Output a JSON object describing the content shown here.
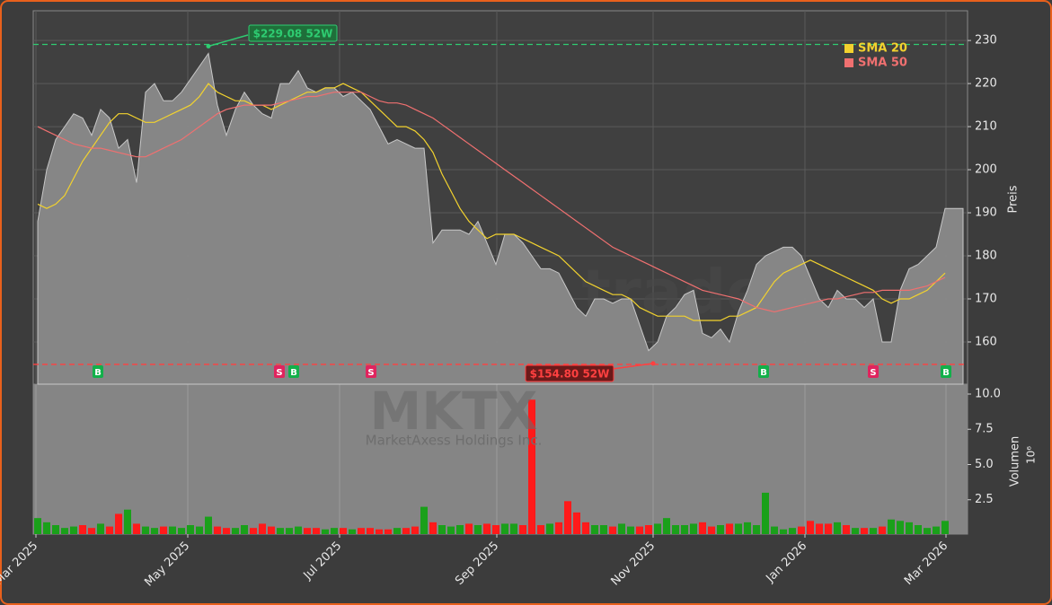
{
  "chart_data": {
    "type": "area",
    "ticker": "MKTX",
    "company": "MarketAxess Holdings Inc.",
    "watermark": "forexsignale.trade",
    "ylabel": "Preis",
    "color": "#8a8a8a",
    "up_color": "#1aa01a",
    "down_color": "#ff1a1a",
    "grid": true,
    "xlim": [
      -0.5,
      103.5
    ],
    "xticks": [
      {
        "value": -0.2,
        "label": "Mar 2025"
      },
      {
        "value": 16.7,
        "label": "May 2025"
      },
      {
        "value": 33.6,
        "label": "Jul 2025"
      },
      {
        "value": 51.1,
        "label": "Sep 2025"
      },
      {
        "value": 68.5,
        "label": "Nov 2025"
      },
      {
        "value": 85.4,
        "label": "Jan 2026"
      },
      {
        "value": 101.1,
        "label": "Mar 2026"
      }
    ],
    "ylim": [
      150.2,
      236.9
    ],
    "yticks": [
      160,
      170,
      180,
      190,
      200,
      210,
      220,
      230
    ],
    "values": [
      188,
      200,
      207,
      210,
      213,
      212,
      208,
      214,
      212,
      205,
      207,
      197,
      218,
      220,
      216,
      216,
      218,
      221,
      224,
      227,
      215,
      208,
      214,
      218,
      215,
      213,
      212,
      220,
      220,
      223,
      219,
      218,
      219,
      219,
      217,
      218,
      216,
      214,
      210,
      206,
      207,
      206,
      205,
      205,
      183,
      186,
      186,
      186,
      185,
      188,
      183,
      178,
      185,
      185,
      183,
      180,
      177,
      177,
      176,
      172,
      168,
      166,
      170,
      170,
      169,
      170,
      170,
      164,
      158,
      160,
      166,
      168,
      171,
      172,
      162,
      161,
      163,
      160,
      167,
      172,
      178,
      180,
      181,
      182,
      182,
      180,
      175,
      170,
      168,
      172,
      170,
      170,
      168,
      170,
      160,
      160,
      172,
      177,
      178,
      180,
      182,
      191,
      191,
      191
    ],
    "series": [
      {
        "name": "SMA 20",
        "color": "#f2d22e",
        "values": [
          192,
          191,
          192,
          194,
          198,
          202,
          205,
          208,
          211,
          213,
          213,
          212,
          211,
          211,
          212,
          213,
          214,
          215,
          217,
          220,
          218,
          217,
          216,
          216,
          215,
          215,
          214,
          215,
          216,
          217,
          218,
          218,
          219,
          219,
          220,
          219,
          218,
          216,
          214,
          212,
          210,
          210,
          209,
          207,
          204,
          199,
          195,
          191,
          188,
          186,
          184,
          185,
          185,
          185,
          184,
          183,
          182,
          181,
          180,
          178,
          176,
          174,
          173,
          172,
          171,
          171,
          170,
          168,
          167,
          166,
          166,
          166,
          166,
          165,
          165,
          165,
          165,
          166,
          166,
          167,
          168,
          171,
          174,
          176,
          177,
          178,
          179,
          178,
          177,
          176,
          175,
          174,
          173,
          172,
          170,
          169,
          170,
          170,
          171,
          172,
          174,
          176,
          null,
          null
        ]
      },
      {
        "name": "SMA 50",
        "color": "#f07070",
        "values": [
          210,
          209,
          208,
          207,
          206,
          205.5,
          205,
          205,
          204.5,
          204,
          203.5,
          203,
          203,
          204,
          205,
          206,
          207,
          208.5,
          210,
          211.5,
          213,
          214,
          214.5,
          215,
          215,
          215,
          215,
          215.5,
          216,
          216.5,
          217,
          217,
          217.5,
          218,
          218,
          218,
          218,
          217,
          216,
          215.5,
          215.5,
          215,
          214,
          213,
          212,
          210.5,
          209,
          207.5,
          206,
          204.5,
          203,
          201.5,
          200,
          198.5,
          197,
          195.5,
          194,
          192.5,
          191,
          189.5,
          188,
          186.5,
          185,
          183.5,
          182,
          181,
          180,
          179,
          178,
          177,
          176,
          175,
          174,
          173,
          172,
          171.5,
          171,
          170.5,
          170,
          169,
          168,
          167.5,
          167,
          167.5,
          168,
          168.5,
          169,
          169.5,
          170,
          170,
          170.5,
          171,
          171.5,
          171.5,
          172,
          172,
          172,
          172,
          172.5,
          173,
          174,
          175,
          null,
          null
        ]
      }
    ],
    "high": {
      "value": 229.08,
      "label": "$229.08 52W",
      "x": 19
    },
    "low": {
      "value": 154.8,
      "label": "$154.80 52W",
      "x": 68.5
    },
    "signals": {
      "x": [
        6.7,
        26.9,
        28.5,
        37.1,
        80.8,
        93,
        101.1
      ],
      "labels": [
        "B",
        "S",
        "B",
        "S",
        "B",
        "S",
        "B"
      ]
    },
    "volume": {
      "ylabel": "Volumen",
      "unit": "10⁶",
      "ylim": [
        0,
        10.7
      ],
      "yticks": [
        2.5,
        {
          "value": 5,
          "label": "5.0"
        },
        {
          "value": 7.5,
          "label": "7.5"
        },
        {
          "value": 10,
          "label": "10.0"
        }
      ],
      "values": [
        1.2,
        0.9,
        0.7,
        0.5,
        0.6,
        0.7,
        0.5,
        0.8,
        0.6,
        1.5,
        1.8,
        0.8,
        0.6,
        0.5,
        0.6,
        0.6,
        0.5,
        0.7,
        0.6,
        1.3,
        0.6,
        0.5,
        0.5,
        0.7,
        0.5,
        0.8,
        0.6,
        0.5,
        0.5,
        0.6,
        0.5,
        0.5,
        0.4,
        0.5,
        0.5,
        0.4,
        0.5,
        0.5,
        0.4,
        0.4,
        0.5,
        0.5,
        0.6,
        2.0,
        0.9,
        0.7,
        0.6,
        0.7,
        0.8,
        0.7,
        0.8,
        0.7,
        0.8,
        0.8,
        0.7,
        9.6,
        0.7,
        0.8,
        0.9,
        2.4,
        1.6,
        0.9,
        0.7,
        0.7,
        0.6,
        0.8,
        0.6,
        0.6,
        0.7,
        0.8,
        1.2,
        0.7,
        0.7,
        0.8,
        0.9,
        0.6,
        0.7,
        0.8,
        0.8,
        0.9,
        0.7,
        3.0,
        0.6,
        0.4,
        0.5,
        0.6,
        1.0,
        0.8,
        0.8,
        0.9,
        0.7,
        0.5,
        0.5,
        0.5,
        0.6,
        1.1,
        1.0,
        0.9,
        0.7,
        0.5,
        0.6,
        1.0,
        null,
        null
      ]
    }
  }
}
